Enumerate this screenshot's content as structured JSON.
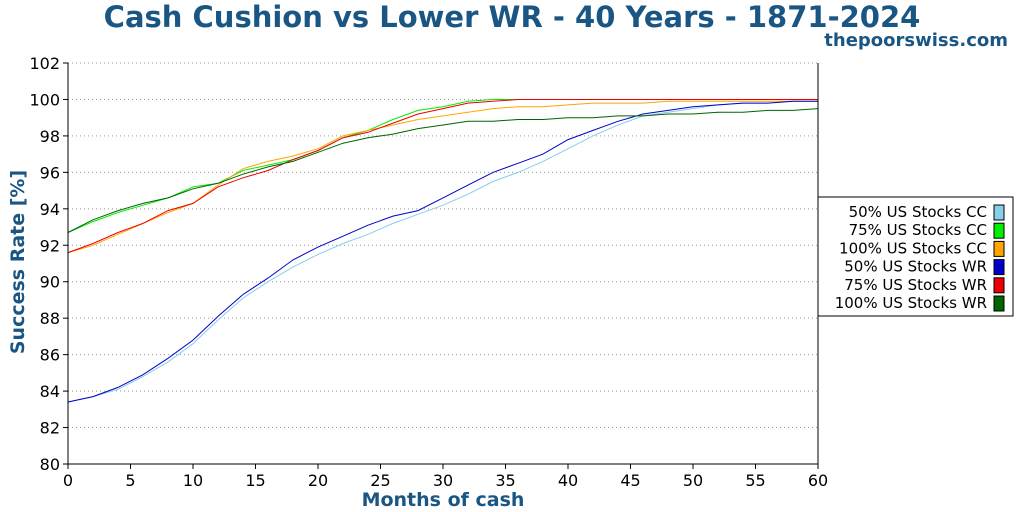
{
  "chart_data": {
    "type": "line",
    "title": "Cash Cushion vs Lower WR - 40 Years - 1871-2024",
    "subtitle": "thepoorswiss.com",
    "xlabel": "Months of cash",
    "ylabel": "Success Rate [%]",
    "xlim": [
      0,
      60
    ],
    "ylim": [
      80,
      102
    ],
    "xticks": [
      0,
      5,
      10,
      15,
      20,
      25,
      30,
      35,
      40,
      45,
      50,
      55,
      60
    ],
    "yticks": [
      80,
      82,
      84,
      86,
      88,
      90,
      92,
      94,
      96,
      98,
      100,
      102
    ],
    "grid": "horizontal dotted",
    "legend_position": "right",
    "x": [
      0,
      2,
      4,
      6,
      8,
      10,
      12,
      14,
      16,
      18,
      20,
      22,
      24,
      26,
      28,
      30,
      32,
      34,
      36,
      38,
      40,
      42,
      44,
      46,
      48,
      50,
      52,
      54,
      56,
      58,
      60
    ],
    "series": [
      {
        "name": "50% US Stocks CC",
        "color": "#87ceeb",
        "values": [
          83.4,
          83.7,
          84.1,
          84.8,
          85.6,
          86.6,
          87.9,
          89.1,
          90.0,
          90.8,
          91.5,
          92.1,
          92.6,
          93.2,
          93.7,
          94.2,
          94.8,
          95.5,
          96.0,
          96.6,
          97.3,
          98.0,
          98.6,
          99.1,
          99.3,
          99.5,
          99.7,
          99.8,
          99.8,
          99.9,
          99.9
        ]
      },
      {
        "name": "75% US Stocks CC",
        "color": "#00ee00",
        "values": [
          92.7,
          93.3,
          93.8,
          94.2,
          94.6,
          95.2,
          95.4,
          96.1,
          96.4,
          96.7,
          97.2,
          97.9,
          98.3,
          98.9,
          99.4,
          99.6,
          99.9,
          100,
          100,
          100,
          100,
          100,
          100,
          100,
          100,
          100,
          100,
          100,
          100,
          100,
          100
        ]
      },
      {
        "name": "100% US Stocks CC",
        "color": "#ffa500",
        "values": [
          91.6,
          92.0,
          92.6,
          93.2,
          93.8,
          94.3,
          95.3,
          96.2,
          96.6,
          96.9,
          97.3,
          98.0,
          98.3,
          98.6,
          98.9,
          99.1,
          99.3,
          99.5,
          99.6,
          99.6,
          99.7,
          99.8,
          99.8,
          99.8,
          99.9,
          99.9,
          99.9,
          99.9,
          99.9,
          99.9,
          99.9
        ]
      },
      {
        "name": "50% US Stocks WR",
        "color": "#0000cc",
        "values": [
          83.4,
          83.7,
          84.2,
          84.9,
          85.8,
          86.8,
          88.1,
          89.3,
          90.2,
          91.2,
          91.9,
          92.5,
          93.1,
          93.6,
          93.9,
          94.6,
          95.3,
          96.0,
          96.5,
          97.0,
          97.8,
          98.3,
          98.8,
          99.2,
          99.4,
          99.6,
          99.7,
          99.8,
          99.8,
          99.9,
          99.9
        ]
      },
      {
        "name": "75% US Stocks WR",
        "color": "#ee0000",
        "values": [
          91.6,
          92.1,
          92.7,
          93.2,
          93.9,
          94.3,
          95.2,
          95.7,
          96.1,
          96.7,
          97.2,
          97.9,
          98.2,
          98.7,
          99.2,
          99.5,
          99.8,
          99.9,
          100,
          100,
          100,
          100,
          100,
          100,
          100,
          100,
          100,
          100,
          100,
          100,
          100
        ]
      },
      {
        "name": "100% US Stocks WR",
        "color": "#006400",
        "values": [
          92.7,
          93.4,
          93.9,
          94.3,
          94.6,
          95.1,
          95.4,
          95.9,
          96.3,
          96.6,
          97.1,
          97.6,
          97.9,
          98.1,
          98.4,
          98.6,
          98.8,
          98.8,
          98.9,
          98.9,
          99.0,
          99.0,
          99.1,
          99.1,
          99.2,
          99.2,
          99.3,
          99.3,
          99.4,
          99.4,
          99.5
        ]
      }
    ]
  }
}
